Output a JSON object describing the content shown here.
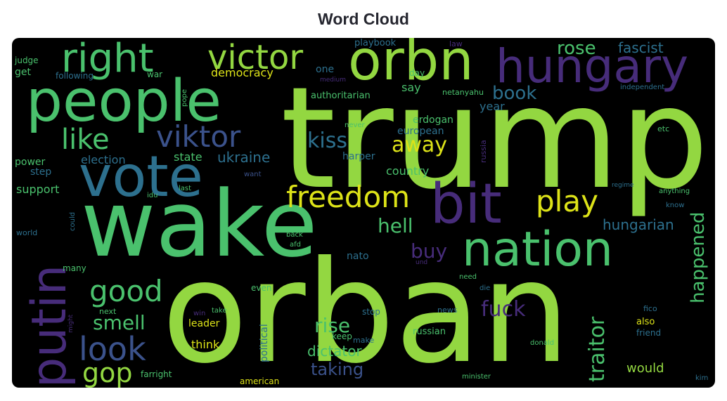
{
  "title": "Word Cloud",
  "colors": {
    "background": "#000000",
    "lime": "#93d741",
    "green": "#4ac16d",
    "teal": "#2d708e",
    "blue": "#3b528b",
    "purple": "#472c7a",
    "yellow": "#dde318",
    "dark": "#31688e"
  },
  "words": {
    "trump": "trump",
    "orban": "orban",
    "wake": "wake",
    "people": "people",
    "vote": "vote",
    "orbn": "orbn",
    "hungary": "hungary",
    "right": "right",
    "victor": "victor",
    "bit": "bit",
    "nation": "nation",
    "putin": "putin",
    "freedom": "freedom",
    "play": "play",
    "viktor": "viktor",
    "like": "like",
    "good": "good",
    "look": "look",
    "smell": "smell",
    "gop": "gop",
    "rose": "rose",
    "fascist": "fascist",
    "book": "book",
    "kiss": "kiss",
    "away": "away",
    "ukraine": "ukraine",
    "state": "state",
    "election": "election",
    "democracy": "democracy",
    "authoritarian": "authoritarian",
    "hell": "hell",
    "buy": "buy",
    "hungarian": "hungarian",
    "happened": "happened",
    "traitor": "traitor",
    "fuck": "fuck",
    "rise": "rise",
    "dictator": "dictator",
    "taking": "taking",
    "would": "would",
    "country": "country",
    "year": "year",
    "say": "say",
    "erdogan": "erdogan",
    "european": "european",
    "harper": "harper",
    "support": "support",
    "power": "power",
    "step": "step",
    "get": "get",
    "judge": "judge",
    "following": "following",
    "war": "war",
    "playbook": "playbook",
    "one": "one",
    "law": "law",
    "day": "day",
    "netanyahu": "netanyahu",
    "independent": "independent",
    "pope": "pope",
    "russia": "russia",
    "never": "never",
    "etc": "etc",
    "want": "want",
    "idu": "idu",
    "last": "last",
    "world": "world",
    "could": "could",
    "back": "back",
    "afd": "afd",
    "nato": "nato",
    "many": "many",
    "even": "even",
    "political": "political",
    "leader": "leader",
    "think": "think",
    "keep": "keep",
    "make": "make",
    "stop": "stop",
    "news": "news",
    "russian": "russian",
    "need": "need",
    "die": "die",
    "donald": "donald",
    "fico": "fico",
    "also": "also",
    "friend": "friend",
    "next": "next",
    "win": "win",
    "take": "take",
    "farright": "farright",
    "american": "american",
    "minister": "minister",
    "kim": "kim",
    "medium": "medium",
    "und": "und",
    "anything": "anything",
    "know": "know",
    "regime": "regime",
    "might": "might"
  }
}
